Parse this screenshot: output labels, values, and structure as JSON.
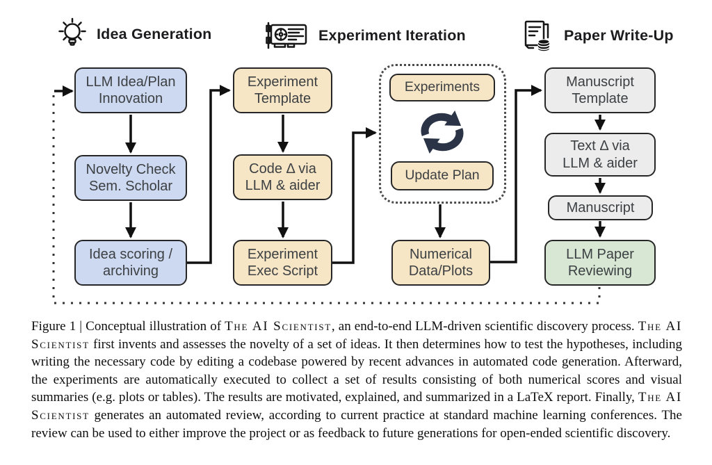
{
  "diagram": {
    "sections": [
      {
        "title": "Idea Generation",
        "icon": "lightbulb-icon"
      },
      {
        "title": "Experiment Iteration",
        "icon": "gpu-icon"
      },
      {
        "title": "Paper Write-Up",
        "icon": "paper-stack-icon"
      }
    ],
    "idea_boxes": [
      "LLM Idea/Plan\nInnovation",
      "Novelty Check\nSem. Scholar",
      "Idea scoring /\narchiving"
    ],
    "experiment_boxes": [
      "Experiment\nTemplate",
      "Code Δ via\nLLM & aider",
      "Experiment\nExec Script"
    ],
    "loop_boxes": [
      "Experiments",
      "Update Plan"
    ],
    "numerical_box": "Numerical\nData/Plots",
    "paper_boxes": [
      "Manuscript\nTemplate",
      "Text Δ via\nLLM & aider",
      "Manuscript",
      "LLM Paper\nReviewing"
    ]
  },
  "colors": {
    "idea_fill": "#cdd9f1",
    "experiment_fill": "#f7e6c6",
    "paper_fill": "#ececec",
    "review_fill": "#d8e7d4",
    "stroke": "#111111",
    "cycle_icon": "#2a3446"
  },
  "caption": {
    "segments": [
      {
        "text": "Figure 1 | Conceptual illustration of "
      },
      {
        "text": "The AI Scientist",
        "smallcaps": true
      },
      {
        "text": ", an end-to-end LLM-driven scientific discovery process. "
      },
      {
        "text": "The AI Scientist",
        "smallcaps": true
      },
      {
        "text": " first invents and assesses the novelty of a set of ideas. It then determines how to test the hypotheses, including writing the necessary code by editing a codebase powered by recent advances in automated code generation. Afterward, the experiments are automatically executed to collect a set of results consisting of both numerical scores and visual summaries (e.g. plots or tables). The results are motivated, explained, and summarized in a LaTeX report. Finally, "
      },
      {
        "text": "The AI Scientist",
        "smallcaps": true
      },
      {
        "text": " generates an automated review, according to current practice at standard machine learning conferences. The review can be used to either improve the project or as feedback to future generations for open-ended scientific discovery."
      }
    ]
  }
}
